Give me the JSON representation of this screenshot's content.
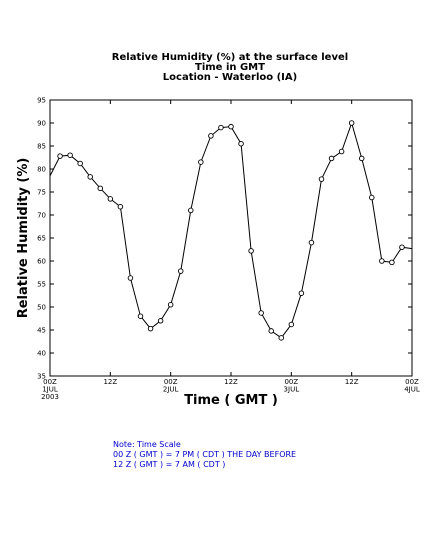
{
  "chart_data": {
    "type": "line",
    "title_lines": [
      "Relative Humidity (%) at the surface level",
      "Time in GMT",
      "Location - Waterloo (IA)"
    ],
    "xlabel": "Time ( GMT )",
    "ylabel": "Relative Humidity (%)",
    "ylim": [
      35,
      95
    ],
    "yticks": [
      35,
      40,
      45,
      50,
      55,
      60,
      65,
      70,
      75,
      80,
      85,
      90,
      95
    ],
    "xlim": [
      0,
      72
    ],
    "xticks": [
      {
        "x": 0,
        "lines": [
          "00Z",
          "1JUL",
          "2003"
        ]
      },
      {
        "x": 12,
        "lines": [
          "12Z"
        ]
      },
      {
        "x": 24,
        "lines": [
          "00Z",
          "2JUL"
        ]
      },
      {
        "x": 36,
        "lines": [
          "12Z"
        ]
      },
      {
        "x": 48,
        "lines": [
          "00Z",
          "3JUL"
        ]
      },
      {
        "x": 60,
        "lines": [
          "12Z"
        ]
      },
      {
        "x": 72,
        "lines": [
          "00Z",
          "4JUL"
        ]
      }
    ],
    "x": [
      0,
      2,
      4,
      6,
      8,
      10,
      12,
      14,
      16,
      18,
      20,
      22,
      24,
      26,
      28,
      30,
      32,
      34,
      36,
      38,
      40,
      42,
      44,
      46,
      48,
      50,
      52,
      54,
      56,
      58,
      60,
      62,
      64,
      66,
      68,
      70,
      72
    ],
    "values": [
      78.5,
      82.8,
      83,
      81.2,
      78.3,
      75.8,
      73.5,
      71.8,
      56.3,
      48,
      45.3,
      47,
      50.5,
      57.8,
      71,
      81.5,
      87.2,
      89,
      89.2,
      85.5,
      62.2,
      48.7,
      44.8,
      43.3,
      46.2,
      53,
      64,
      77.8,
      82.3,
      83.8,
      90,
      82.3,
      73.8,
      60,
      59.7,
      63,
      62.7
    ],
    "grid": false,
    "legend": "none"
  },
  "note": {
    "lines": [
      "Note: Time Scale",
      "00 Z ( GMT ) = 7 PM ( CDT ) THE DAY BEFORE",
      "12 Z ( GMT ) = 7 AM ( CDT )"
    ]
  }
}
